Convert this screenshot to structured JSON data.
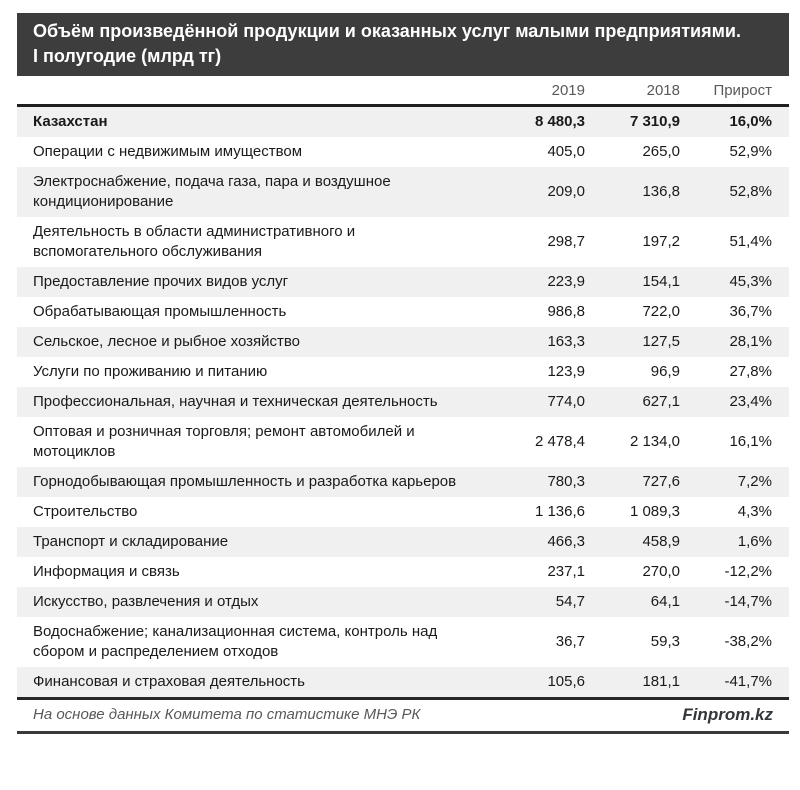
{
  "header": {
    "title_line1": "Объём произведённой продукции и оказанных услуг малыми предприятиями.",
    "title_line2": "I полугодие (млрд тг)"
  },
  "table": {
    "columns": [
      "2019",
      "2018",
      "Прирост"
    ]
  },
  "chart_data": {
    "type": "table",
    "title": "Объём произведённой продукции и оказанных услуг малыми предприятиями. I полугодие (млрд тг)",
    "unit": "млрд тг",
    "columns": [
      "",
      "2019",
      "2018",
      "Прирост"
    ],
    "rows": [
      {
        "name": "Казахстан",
        "y2019": "8 480,3",
        "y2018": "7 310,9",
        "growth": "16,0%",
        "total": true
      },
      {
        "name": "Операции с недвижимым имуществом",
        "y2019": "405,0",
        "y2018": "265,0",
        "growth": "52,9%"
      },
      {
        "name": "Электроснабжение, подача газа, пара и воздушное кондиционирование",
        "y2019": "209,0",
        "y2018": "136,8",
        "growth": "52,8%"
      },
      {
        "name": "Деятельность в области административного и вспомогательного обслуживания",
        "y2019": "298,7",
        "y2018": "197,2",
        "growth": "51,4%"
      },
      {
        "name": "Предоставление прочих видов услуг",
        "y2019": "223,9",
        "y2018": "154,1",
        "growth": "45,3%"
      },
      {
        "name": "Обрабатывающая промышленность",
        "y2019": "986,8",
        "y2018": "722,0",
        "growth": "36,7%"
      },
      {
        "name": "Сельское, лесное и рыбное хозяйство",
        "y2019": "163,3",
        "y2018": "127,5",
        "growth": "28,1%"
      },
      {
        "name": "Услуги по проживанию и питанию",
        "y2019": "123,9",
        "y2018": "96,9",
        "growth": "27,8%"
      },
      {
        "name": "Профессиональная, научная и техническая деятельность",
        "y2019": "774,0",
        "y2018": "627,1",
        "growth": "23,4%"
      },
      {
        "name": "Оптовая и розничная торговля; ремонт автомобилей и мотоциклов",
        "y2019": "2 478,4",
        "y2018": "2 134,0",
        "growth": "16,1%"
      },
      {
        "name": "Горнодобывающая промышленность и разработка карьеров",
        "y2019": "780,3",
        "y2018": "727,6",
        "growth": "7,2%"
      },
      {
        "name": "Строительство",
        "y2019": "1 136,6",
        "y2018": "1 089,3",
        "growth": "4,3%"
      },
      {
        "name": "Транспорт и складирование",
        "y2019": "466,3",
        "y2018": "458,9",
        "growth": "1,6%"
      },
      {
        "name": "Информация и связь",
        "y2019": "237,1",
        "y2018": "270,0",
        "growth": "-12,2%"
      },
      {
        "name": "Искусство, развлечения и отдых",
        "y2019": "54,7",
        "y2018": "64,1",
        "growth": "-14,7%"
      },
      {
        "name": "Водоснабжение; канализационная система, контроль над сбором и распределением отходов",
        "y2019": "36,7",
        "y2018": "59,3",
        "growth": "-38,2%"
      },
      {
        "name": "Финансовая и страховая деятельность",
        "y2019": "105,6",
        "y2018": "181,1",
        "growth": "-41,7%"
      }
    ]
  },
  "footer": {
    "source": "На основе данных Комитета по статистике МНЭ РК",
    "brand": "Finprom.kz"
  },
  "colors": {
    "title_band_bg": "#3d3d3d",
    "title_text": "#ffffff",
    "stripe_row_bg": "#f0f0f0",
    "header_text": "#595959",
    "body_text": "#1a1a1a",
    "rule_dark": "#262626"
  }
}
